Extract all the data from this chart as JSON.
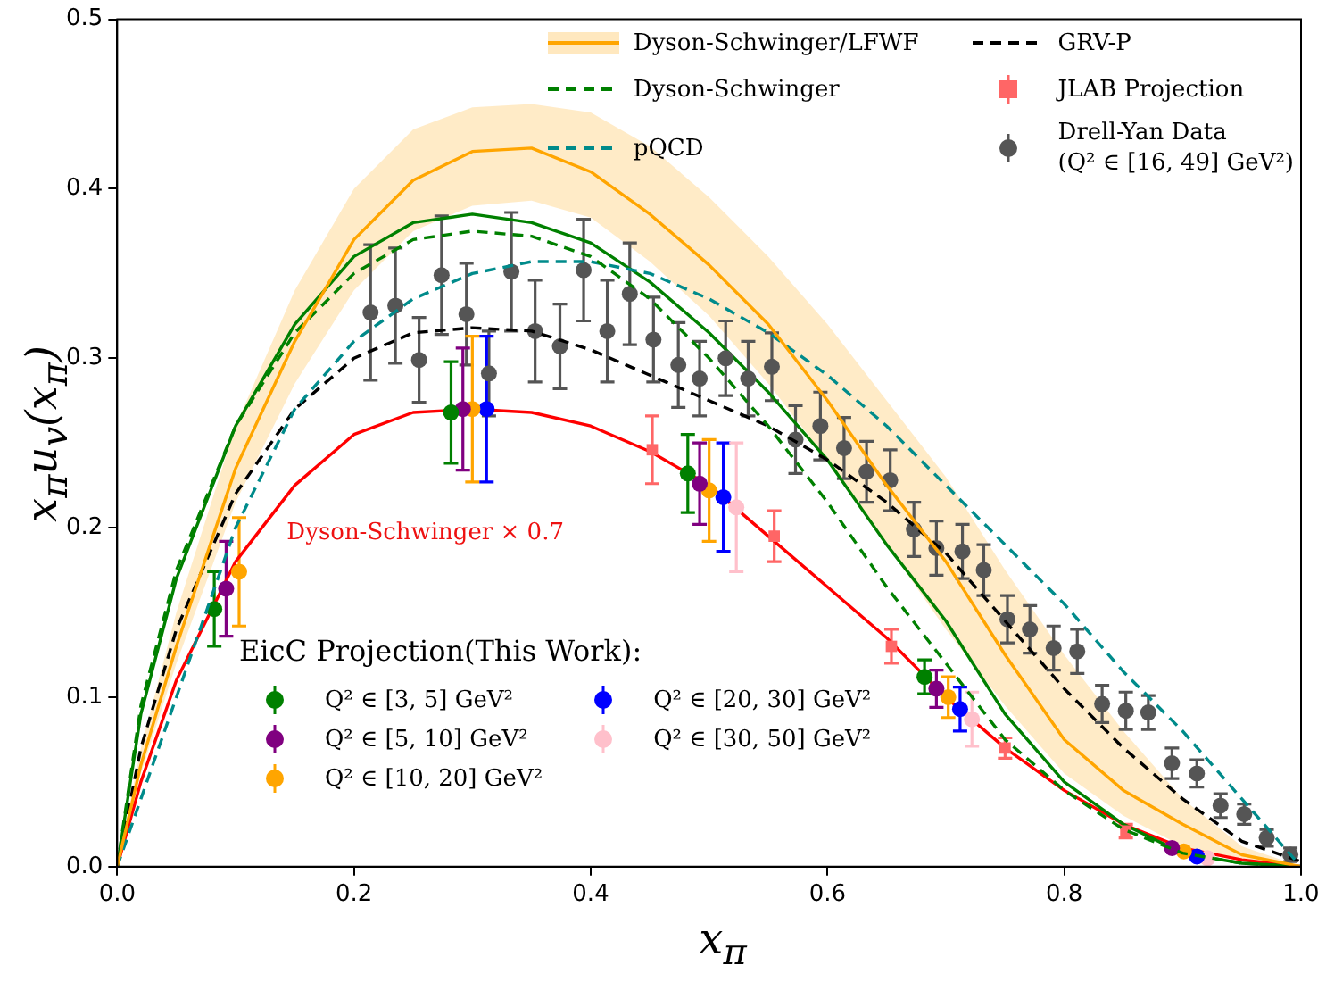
{
  "chart_data": {
    "type": "line",
    "xlabel": "x$_{π}$",
    "ylabel": "x$_{π}$u$_{v}$(x$_{π}$)",
    "legend": "top right",
    "legend_title": "EicC Projection(This Work):",
    "xlim": [
      0,
      1
    ],
    "ylim": [
      0,
      0.5
    ],
    "xticks": [
      {
        "value": 0,
        "label": "0.0"
      },
      {
        "value": 0.2,
        "label": "0.2"
      },
      {
        "value": 0.4,
        "label": "0.4"
      },
      {
        "value": 0.6,
        "label": "0.6"
      },
      {
        "value": 0.8,
        "label": "0.8"
      },
      {
        "value": 1,
        "label": "1.0"
      }
    ],
    "yticks": [
      {
        "value": 0,
        "label": "0.0"
      },
      {
        "value": 0.1,
        "label": "0.1"
      },
      {
        "value": 0.2,
        "label": "0.2"
      },
      {
        "value": 0.3,
        "label": "0.3"
      },
      {
        "value": 0.4,
        "label": "0.4"
      },
      {
        "value": 0.5,
        "label": "0.5"
      }
    ],
    "annotations": [
      "Dyson-Schwinger × 0.7"
    ],
    "series": [
      {
        "name": "Dyson-Schwinger/LFWF",
        "color": "#ffa500",
        "line_style": "solid",
        "marker": "none",
        "x": [
          0,
          0.02,
          0.05,
          0.1,
          0.15,
          0.2,
          0.25,
          0.3,
          0.35,
          0.4,
          0.45,
          0.5,
          0.55,
          0.6,
          0.65,
          0.7,
          0.75,
          0.8,
          0.85,
          0.9,
          0.95,
          1
        ],
        "values": [
          0,
          0.06,
          0.13,
          0.235,
          0.31,
          0.37,
          0.405,
          0.422,
          0.424,
          0.41,
          0.385,
          0.355,
          0.32,
          0.275,
          0.225,
          0.18,
          0.125,
          0.075,
          0.045,
          0.025,
          0.007,
          0
        ],
        "lower": [
          0,
          0.055,
          0.12,
          0.215,
          0.285,
          0.34,
          0.375,
          0.39,
          0.393,
          0.383,
          0.357,
          0.325,
          0.285,
          0.24,
          0.19,
          0.14,
          0.095,
          0.055,
          0.03,
          0.012,
          0.003,
          0
        ],
        "upper": [
          0,
          0.07,
          0.15,
          0.26,
          0.34,
          0.4,
          0.435,
          0.448,
          0.45,
          0.445,
          0.425,
          0.395,
          0.36,
          0.32,
          0.275,
          0.23,
          0.175,
          0.125,
          0.08,
          0.04,
          0.012,
          0
        ]
      },
      {
        "name": "Dyson-Schwinger",
        "color": "#008000",
        "line_style": "dashed",
        "marker": "none",
        "x": [
          0,
          0.02,
          0.05,
          0.1,
          0.15,
          0.2,
          0.25,
          0.3,
          0.35,
          0.4,
          0.45,
          0.5,
          0.55,
          0.6,
          0.65,
          0.7,
          0.75,
          0.8,
          0.85,
          0.9,
          0.95,
          1
        ],
        "values": [
          0,
          0.095,
          0.175,
          0.26,
          0.315,
          0.35,
          0.37,
          0.375,
          0.372,
          0.36,
          0.335,
          0.3,
          0.26,
          0.215,
          0.165,
          0.12,
          0.075,
          0.045,
          0.022,
          0.008,
          0.002,
          0
        ]
      },
      {
        "name": "pQCD",
        "color": "#008b8b",
        "line_style": "dashed",
        "marker": "none",
        "x": [
          0,
          0.02,
          0.05,
          0.1,
          0.15,
          0.2,
          0.25,
          0.3,
          0.35,
          0.4,
          0.45,
          0.5,
          0.55,
          0.6,
          0.65,
          0.7,
          0.75,
          0.8,
          0.85,
          0.9,
          0.95,
          1
        ],
        "values": [
          0,
          0.04,
          0.1,
          0.2,
          0.27,
          0.31,
          0.335,
          0.35,
          0.357,
          0.357,
          0.35,
          0.335,
          0.315,
          0.29,
          0.26,
          0.225,
          0.19,
          0.155,
          0.115,
          0.08,
          0.04,
          0
        ]
      },
      {
        "name": "GRV-P",
        "color": "#000000",
        "line_style": "dashed",
        "marker": "none",
        "x": [
          0,
          0.02,
          0.05,
          0.1,
          0.15,
          0.2,
          0.25,
          0.3,
          0.35,
          0.4,
          0.45,
          0.5,
          0.55,
          0.6,
          0.65,
          0.7,
          0.75,
          0.8,
          0.85,
          0.9,
          0.95,
          1
        ],
        "values": [
          0,
          0.07,
          0.14,
          0.22,
          0.27,
          0.3,
          0.315,
          0.318,
          0.316,
          0.305,
          0.29,
          0.275,
          0.26,
          0.24,
          0.215,
          0.185,
          0.145,
          0.105,
          0.07,
          0.04,
          0.015,
          0.003
        ]
      },
      {
        "name": "JLAB Projection",
        "type": "scatter",
        "color": "#ff6666",
        "marker": "square",
        "x": [
          0.452,
          0.555,
          0.654,
          0.75,
          0.852
        ],
        "values": [
          0.246,
          0.195,
          0.13,
          0.07,
          0.021
        ],
        "errors": [
          0.02,
          0.015,
          0.01,
          0.006,
          0.004
        ]
      },
      {
        "name": "Drell-Yan Data\n(Q² ∈ [16, 49] GeV²)",
        "type": "scatter",
        "color": "#555555",
        "marker": "circle",
        "x": [
          0.214,
          0.235,
          0.255,
          0.274,
          0.295,
          0.314,
          0.333,
          0.353,
          0.374,
          0.394,
          0.414,
          0.433,
          0.453,
          0.474,
          0.492,
          0.514,
          0.533,
          0.553,
          0.573,
          0.594,
          0.614,
          0.633,
          0.653,
          0.673,
          0.692,
          0.714,
          0.732,
          0.752,
          0.771,
          0.791,
          0.811,
          0.832,
          0.852,
          0.871,
          0.891,
          0.912,
          0.932,
          0.952,
          0.971,
          0.991
        ],
        "values": [
          0.327,
          0.331,
          0.299,
          0.349,
          0.326,
          0.291,
          0.351,
          0.316,
          0.307,
          0.352,
          0.316,
          0.338,
          0.311,
          0.296,
          0.288,
          0.3,
          0.288,
          0.295,
          0.252,
          0.26,
          0.247,
          0.233,
          0.228,
          0.199,
          0.188,
          0.186,
          0.175,
          0.146,
          0.14,
          0.129,
          0.127,
          0.096,
          0.092,
          0.091,
          0.061,
          0.055,
          0.036,
          0.031,
          0.017,
          0.007
        ],
        "errors": [
          0.04,
          0.034,
          0.025,
          0.035,
          0.03,
          0.025,
          0.035,
          0.03,
          0.025,
          0.03,
          0.03,
          0.03,
          0.025,
          0.025,
          0.022,
          0.022,
          0.022,
          0.02,
          0.02,
          0.02,
          0.018,
          0.018,
          0.018,
          0.016,
          0.016,
          0.016,
          0.015,
          0.014,
          0.014,
          0.013,
          0.013,
          0.011,
          0.011,
          0.01,
          0.009,
          0.008,
          0.007,
          0.006,
          0.005,
          0.004
        ]
      },
      {
        "name": "Q² ∈ [3, 5] GeV²",
        "type": "scatter",
        "color": "#008000",
        "marker": "circle",
        "x": [
          0.082,
          0.282,
          0.482,
          0.682
        ],
        "values": [
          0.152,
          0.268,
          0.232,
          0.112
        ],
        "errors": [
          0.022,
          0.03,
          0.023,
          0.01
        ]
      },
      {
        "name": "Q² ∈ [5, 10] GeV²",
        "type": "scatter",
        "color": "#800080",
        "marker": "circle",
        "x": [
          0.092,
          0.292,
          0.492,
          0.692,
          0.891
        ],
        "values": [
          0.164,
          0.27,
          0.226,
          0.105,
          0.011
        ],
        "errors": [
          0.028,
          0.036,
          0.024,
          0.011,
          null
        ]
      },
      {
        "name": "Q² ∈ [10, 20] GeV²",
        "type": "scatter",
        "color": "#ffa500",
        "marker": "circle",
        "x": [
          0.103,
          0.3,
          0.5,
          0.702,
          0.901
        ],
        "values": [
          0.174,
          0.27,
          0.222,
          0.1,
          0.009
        ],
        "errors": [
          0.032,
          0.043,
          0.03,
          0.012,
          null
        ]
      },
      {
        "name": "Q² ∈ [20, 30] GeV²",
        "type": "scatter",
        "color": "#0000ff",
        "marker": "circle",
        "x": [
          0.312,
          0.512,
          0.712,
          0.912
        ],
        "values": [
          0.27,
          0.218,
          0.093,
          0.006
        ],
        "errors": [
          0.043,
          0.032,
          0.013,
          null
        ]
      },
      {
        "name": "Q² ∈ [30, 50] GeV²",
        "type": "scatter",
        "color": "#ffc0cb",
        "marker": "circle",
        "x": [
          0.523,
          0.722,
          0.921
        ],
        "values": [
          0.212,
          0.087,
          0.005
        ],
        "errors": [
          0.038,
          0.016,
          null
        ]
      },
      {
        "color": "#008000",
        "line_style": "solid",
        "marker": "none",
        "x": [
          0,
          0.02,
          0.05,
          0.1,
          0.15,
          0.2,
          0.25,
          0.3,
          0.35,
          0.4,
          0.45,
          0.5,
          0.55,
          0.6,
          0.65,
          0.7,
          0.75,
          0.8,
          0.85,
          0.9,
          0.95,
          1
        ],
        "values": [
          0,
          0.09,
          0.17,
          0.26,
          0.32,
          0.36,
          0.38,
          0.385,
          0.38,
          0.368,
          0.345,
          0.315,
          0.28,
          0.24,
          0.19,
          0.145,
          0.09,
          0.05,
          0.025,
          0.008,
          0.002,
          0
        ]
      },
      {
        "color": "#ff0000",
        "line_style": "solid",
        "marker": "none",
        "x": [
          0,
          0.02,
          0.05,
          0.1,
          0.15,
          0.2,
          0.25,
          0.3,
          0.35,
          0.4,
          0.45,
          0.5,
          0.55,
          0.6,
          0.65,
          0.7,
          0.75,
          0.8,
          0.85,
          0.9,
          0.95,
          1
        ],
        "values": [
          0,
          0.05,
          0.11,
          0.18,
          0.225,
          0.255,
          0.268,
          0.27,
          0.268,
          0.26,
          0.245,
          0.225,
          0.195,
          0.165,
          0.135,
          0.1,
          0.07,
          0.045,
          0.025,
          0.011,
          0.004,
          0
        ]
      }
    ]
  }
}
